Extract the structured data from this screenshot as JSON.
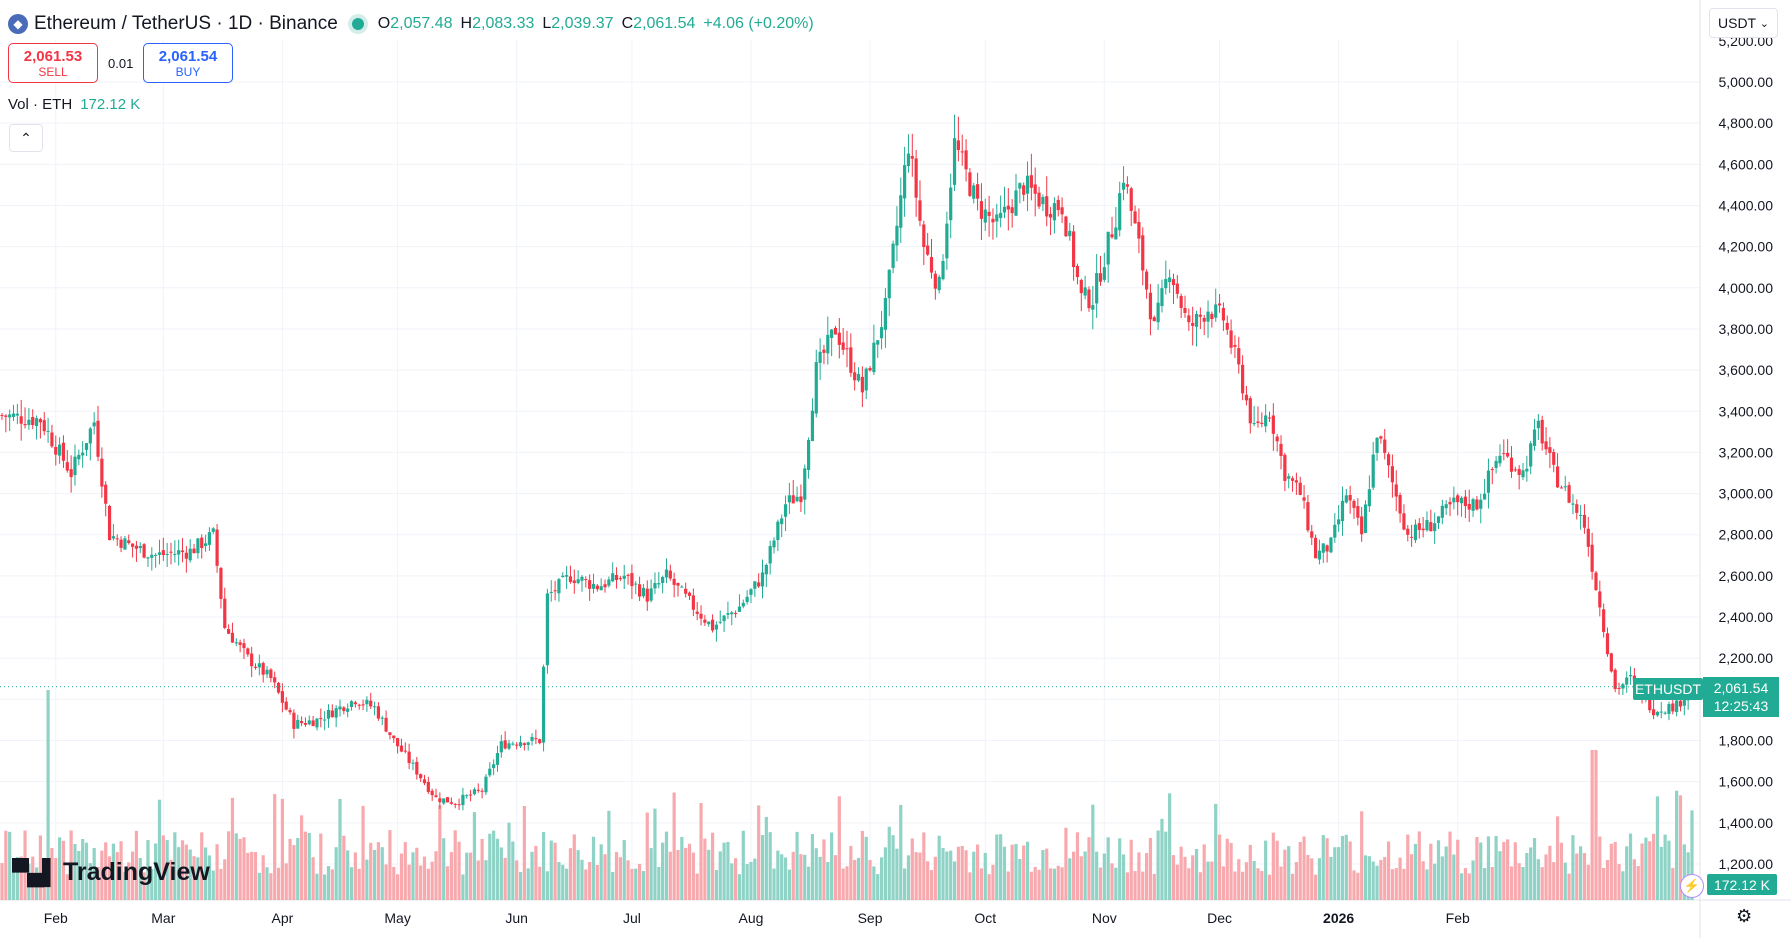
{
  "legend": {
    "pair": "Ethereum / TetherUS · 1D · Binance",
    "o_key": "O",
    "o_val": "2,057.48",
    "h_key": "H",
    "h_val": "2,083.33",
    "l_key": "L",
    "l_val": "2,039.37",
    "c_key": "C",
    "c_val": "2,061.54",
    "change": "+4.06 (+0.20%)"
  },
  "trade": {
    "sell_price": "2,061.53",
    "sell_label": "SELL",
    "spread": "0.01",
    "buy_price": "2,061.54",
    "buy_label": "BUY"
  },
  "volume_legend": {
    "label": "Vol · ETH",
    "value": "172.12 K"
  },
  "currency": {
    "label": "USDT"
  },
  "logo": {
    "text": "TradingView"
  },
  "last_price": {
    "symbol": "ETHUSDT",
    "price": "2,061.54",
    "countdown": "12:25:43"
  },
  "volume_tag": "172.12 K",
  "colors": {
    "up": "#22ab94",
    "down": "#f23645",
    "up_volume": "#8fd3c6",
    "down_volume": "#f7a9ae"
  },
  "chart_data": {
    "type": "candlestick",
    "y_ticks": [
      "1,200.00",
      "1,400.00",
      "1,600.00",
      "1,800.00",
      "2,000.00",
      "2,200.00",
      "2,400.00",
      "2,600.00",
      "2,800.00",
      "3,000.00",
      "3,200.00",
      "3,400.00",
      "3,600.00",
      "3,800.00",
      "4,000.00",
      "4,200.00",
      "4,400.00",
      "4,600.00",
      "4,800.00",
      "5,000.00"
    ],
    "x_ticks": [
      "Feb",
      "Mar",
      "Apr",
      "May",
      "Jun",
      "Jul",
      "Aug",
      "Sep",
      "Oct",
      "Nov",
      "Dec",
      "2026",
      "Feb"
    ],
    "ylim": [
      1100,
      5200
    ],
    "last_price": 2061.54,
    "close_path": [
      [
        0,
        3380
      ],
      [
        10,
        3360
      ],
      [
        18,
        3100
      ],
      [
        24,
        3350
      ],
      [
        28,
        2800
      ],
      [
        33,
        2750
      ],
      [
        40,
        2700
      ],
      [
        49,
        2720
      ],
      [
        55,
        2800
      ],
      [
        58,
        2350
      ],
      [
        64,
        2200
      ],
      [
        70,
        2100
      ],
      [
        76,
        1880
      ],
      [
        82,
        1900
      ],
      [
        92,
        2000
      ],
      [
        97,
        1960
      ],
      [
        102,
        1800
      ],
      [
        108,
        1650
      ],
      [
        113,
        1520
      ],
      [
        118,
        1500
      ],
      [
        125,
        1560
      ],
      [
        130,
        1780
      ],
      [
        135,
        1800
      ],
      [
        140,
        1800
      ],
      [
        142,
        2500
      ],
      [
        148,
        2600
      ],
      [
        155,
        2550
      ],
      [
        162,
        2600
      ],
      [
        168,
        2500
      ],
      [
        173,
        2600
      ],
      [
        180,
        2450
      ],
      [
        185,
        2350
      ],
      [
        192,
        2450
      ],
      [
        198,
        2600
      ],
      [
        204,
        2950
      ],
      [
        208,
        3000
      ],
      [
        212,
        3600
      ],
      [
        217,
        3800
      ],
      [
        224,
        3500
      ],
      [
        230,
        3900
      ],
      [
        236,
        4700
      ],
      [
        240,
        4200
      ],
      [
        244,
        4000
      ],
      [
        248,
        4700
      ],
      [
        254,
        4400
      ],
      [
        259,
        4300
      ],
      [
        266,
        4500
      ],
      [
        272,
        4400
      ],
      [
        276,
        4400
      ],
      [
        281,
        3950
      ],
      [
        284,
        3950
      ],
      [
        290,
        4350
      ],
      [
        292,
        4550
      ],
      [
        296,
        4200
      ],
      [
        300,
        3800
      ],
      [
        304,
        4100
      ],
      [
        309,
        3800
      ],
      [
        314,
        3900
      ],
      [
        318,
        3850
      ],
      [
        322,
        3600
      ],
      [
        326,
        3300
      ],
      [
        330,
        3400
      ],
      [
        334,
        3100
      ],
      [
        338,
        3000
      ],
      [
        342,
        2700
      ],
      [
        346,
        2750
      ],
      [
        350,
        3000
      ],
      [
        354,
        2800
      ],
      [
        358,
        3300
      ],
      [
        362,
        3050
      ],
      [
        366,
        2800
      ],
      [
        372,
        2850
      ],
      [
        378,
        2950
      ],
      [
        384,
        2950
      ],
      [
        390,
        3200
      ],
      [
        396,
        3100
      ],
      [
        400,
        3330
      ],
      [
        404,
        3100
      ],
      [
        408,
        2980
      ],
      [
        412,
        2850
      ],
      [
        416,
        2450
      ],
      [
        420,
        2050
      ],
      [
        424,
        2100
      ],
      [
        430,
        1950
      ],
      [
        436,
        1970
      ],
      [
        440,
        2061.54
      ]
    ],
    "total_days": 441
  }
}
